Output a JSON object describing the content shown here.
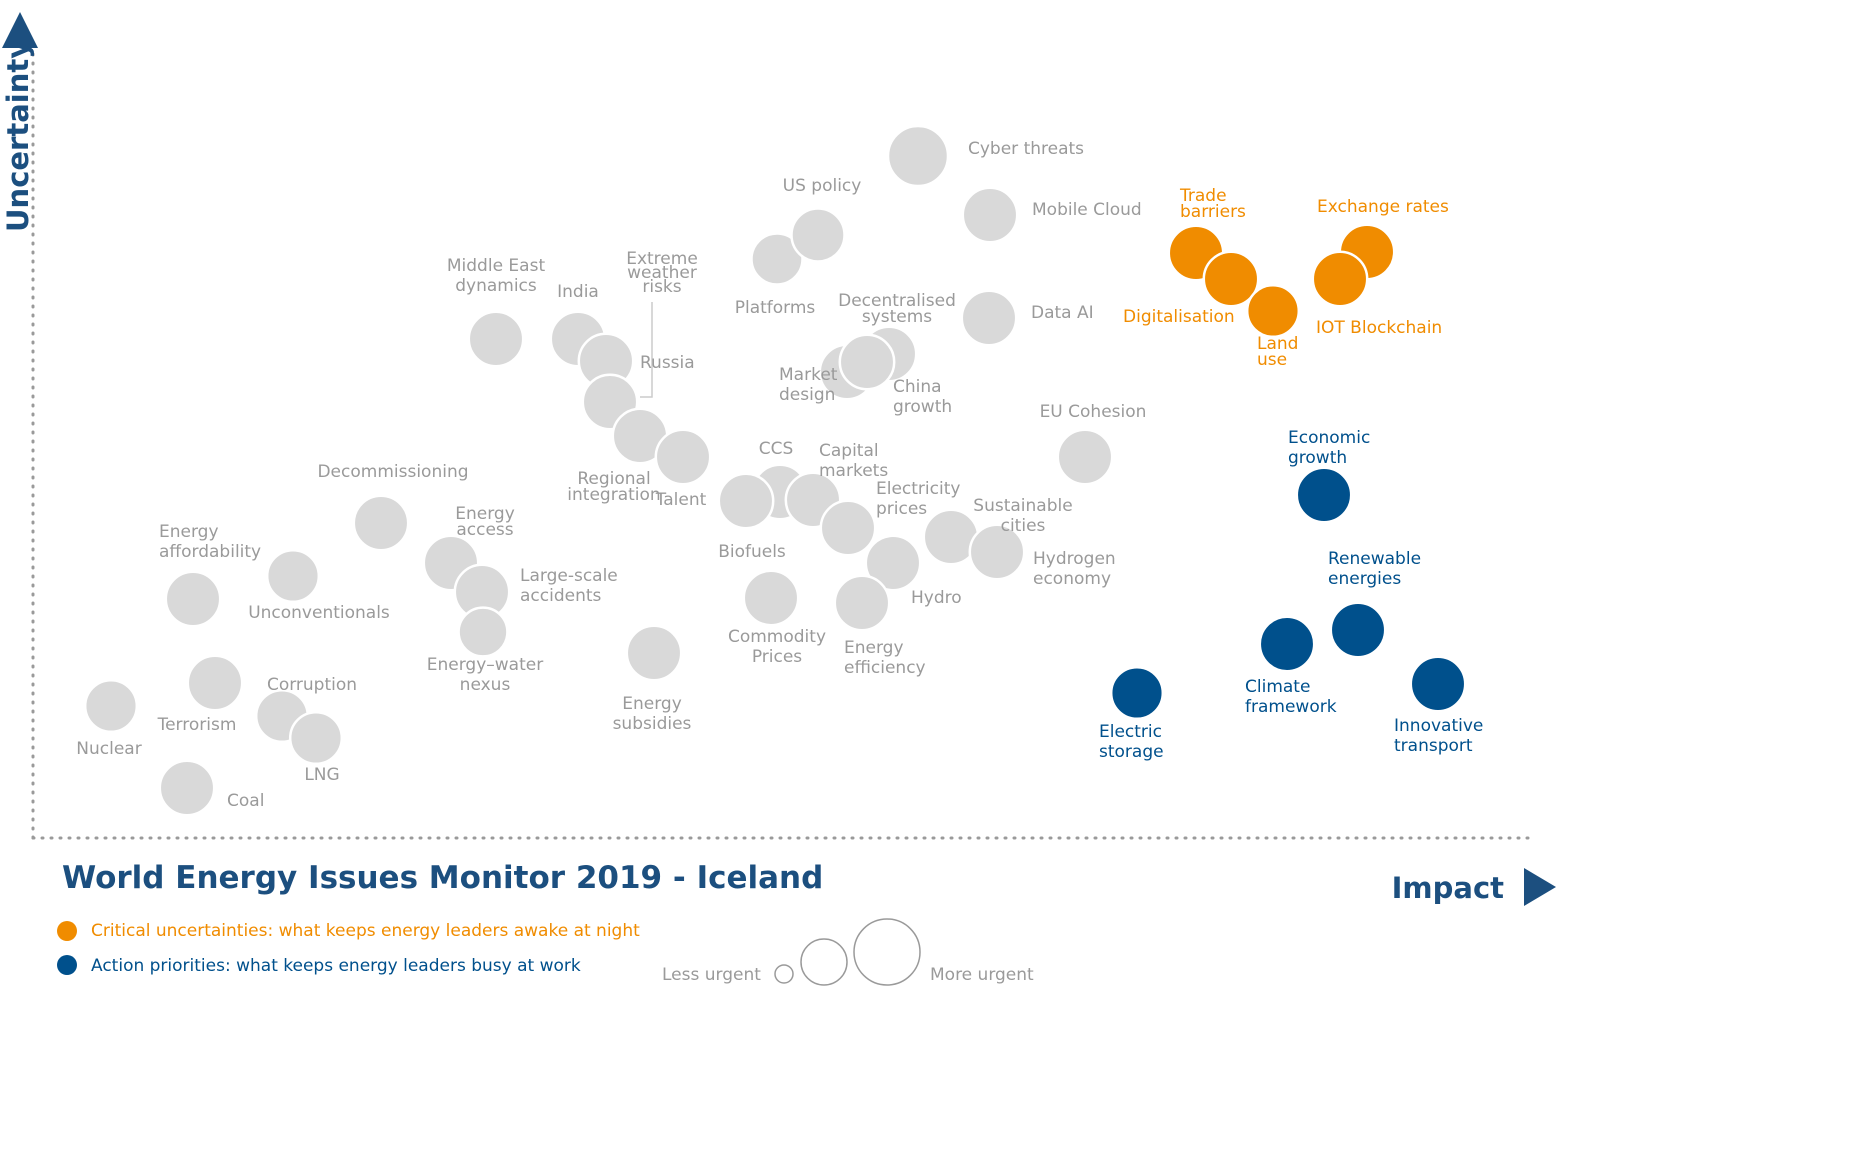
{
  "chart_data": {
    "type": "scatter",
    "title": "World Energy Issues Monitor 2019 - Iceland",
    "xlabel": "Impact",
    "ylabel": "Uncertainty",
    "grid": false,
    "legend_placement": "bottom-left",
    "colors": {
      "grey": "#d9d9d9",
      "orange": "#f08c00",
      "blue": "#00508c",
      "greyText": "#9a9a9a",
      "title": "#1c4f7f"
    },
    "legend": [
      {
        "label": "Critical uncertainties: what keeps energy leaders awake at night",
        "color": "#f08c00"
      },
      {
        "label": "Action priorities: what keeps energy leaders busy at work",
        "color": "#00508c"
      }
    ],
    "size_legend": {
      "less_label": "Less urgent",
      "more_label": "More urgent"
    },
    "issues": [
      {
        "id": "cyber",
        "label": [
          "Cyber threats"
        ],
        "group": "grey",
        "impact": 918,
        "uncertainty": 1004,
        "urgency": 1.0
      },
      {
        "id": "mobile",
        "label": [
          "Mobile Cloud"
        ],
        "group": "grey",
        "impact": 990,
        "uncertainty": 945,
        "urgency": 0.8
      },
      {
        "id": "dataai",
        "label": [
          "Data AI"
        ],
        "group": "grey",
        "impact": 989,
        "uncertainty": 842,
        "urgency": 0.8
      },
      {
        "id": "platforms",
        "label": [
          "Platforms"
        ],
        "group": "grey",
        "impact": 777,
        "uncertainty": 901,
        "urgency": 0.68
      },
      {
        "id": "uspolicy",
        "label": [
          "US policy"
        ],
        "group": "grey",
        "impact": 818,
        "uncertainty": 925,
        "urgency": 0.75
      },
      {
        "id": "mideast",
        "label": [
          "Middle East",
          "dynamics"
        ],
        "group": "grey",
        "impact": 496,
        "uncertainty": 821,
        "urgency": 0.8
      },
      {
        "id": "india",
        "label": [
          "India"
        ],
        "group": "grey",
        "impact": 578,
        "uncertainty": 821,
        "urgency": 0.8
      },
      {
        "id": "russia",
        "label": [
          "Russia"
        ],
        "group": "grey",
        "impact": 606,
        "uncertainty": 799,
        "urgency": 0.8
      },
      {
        "id": "extreme",
        "label": [
          "Extreme",
          "weather",
          "risks"
        ],
        "group": "grey",
        "impact": 610,
        "uncertainty": 758,
        "urgency": 0.8
      },
      {
        "id": "regional",
        "label": [
          "Regional",
          "integration"
        ],
        "group": "grey",
        "impact": 640,
        "uncertainty": 724,
        "urgency": 0.8
      },
      {
        "id": "talent",
        "label": [
          "Talent"
        ],
        "group": "grey",
        "impact": 683,
        "uncertainty": 703,
        "urgency": 0.8
      },
      {
        "id": "decentral",
        "label": [
          "Decentralised",
          "systems"
        ],
        "group": "grey",
        "impact": 889,
        "uncertainty": 806,
        "urgency": 0.8
      },
      {
        "id": "market",
        "label": [
          "Market",
          "design"
        ],
        "group": "grey",
        "impact": 847,
        "uncertainty": 788,
        "urgency": 0.8
      },
      {
        "id": "china",
        "label": [
          "China",
          "growth"
        ],
        "group": "grey",
        "impact": 867,
        "uncertainty": 798,
        "urgency": 0.8
      },
      {
        "id": "eucohesion",
        "label": [
          "EU Cohesion"
        ],
        "group": "grey",
        "impact": 1085,
        "uncertainty": 703,
        "urgency": 0.8
      },
      {
        "id": "ccs",
        "label": [
          "CCS"
        ],
        "group": "grey",
        "impact": 780,
        "uncertainty": 668,
        "urgency": 0.8
      },
      {
        "id": "capital",
        "label": [
          "Capital",
          "markets"
        ],
        "group": "grey",
        "impact": 813,
        "uncertainty": 660,
        "urgency": 0.8
      },
      {
        "id": "biofuels",
        "label": [
          "Biofuels"
        ],
        "group": "grey",
        "impact": 746,
        "uncertainty": 659,
        "urgency": 0.8
      },
      {
        "id": "elecprices",
        "label": [
          "Electricity",
          "prices"
        ],
        "group": "grey",
        "impact": 848,
        "uncertainty": 632,
        "urgency": 0.8
      },
      {
        "id": "sustcities",
        "label": [
          "Sustainable",
          "cities"
        ],
        "group": "grey",
        "impact": 951,
        "uncertainty": 623,
        "urgency": 0.8
      },
      {
        "id": "hydrogen",
        "label": [
          "Hydrogen",
          "economy"
        ],
        "group": "grey",
        "impact": 997,
        "uncertainty": 608,
        "urgency": 0.8
      },
      {
        "id": "hydro",
        "label": [
          "Hydro"
        ],
        "group": "grey",
        "impact": 893,
        "uncertainty": 597,
        "urgency": 0.8
      },
      {
        "id": "efficiency",
        "label": [
          "Energy",
          "efficiency"
        ],
        "group": "grey",
        "impact": 862,
        "uncertainty": 557,
        "urgency": 0.8
      },
      {
        "id": "commodity",
        "label": [
          "Commodity",
          "Prices"
        ],
        "group": "grey",
        "impact": 771,
        "uncertainty": 562,
        "urgency": 0.8
      },
      {
        "id": "subsidies",
        "label": [
          "Energy",
          "subsidies"
        ],
        "group": "grey",
        "impact": 654,
        "uncertainty": 507,
        "urgency": 0.8
      },
      {
        "id": "decommission",
        "label": [
          "Decommissioning"
        ],
        "group": "grey",
        "impact": 381,
        "uncertainty": 637,
        "urgency": 0.8
      },
      {
        "id": "access",
        "label": [
          "Energy",
          "access"
        ],
        "group": "grey",
        "impact": 451,
        "uncertainty": 597,
        "urgency": 0.8
      },
      {
        "id": "largescale",
        "label": [
          "Large-scale",
          "accidents"
        ],
        "group": "grey",
        "impact": 482,
        "uncertainty": 568,
        "urgency": 0.8
      },
      {
        "id": "waternexus",
        "label": [
          "Energy–water",
          "nexus"
        ],
        "group": "grey",
        "impact": 483,
        "uncertainty": 528,
        "urgency": 0.6
      },
      {
        "id": "unconventional",
        "label": [
          "Unconventionals"
        ],
        "group": "grey",
        "impact": 293,
        "uncertainty": 584,
        "urgency": 0.7
      },
      {
        "id": "affordability",
        "label": [
          "Energy",
          "affordability"
        ],
        "group": "grey",
        "impact": 193,
        "uncertainty": 561,
        "urgency": 0.8
      },
      {
        "id": "terrorism",
        "label": [
          "Terrorism"
        ],
        "group": "grey",
        "impact": 215,
        "uncertainty": 477,
        "urgency": 0.8
      },
      {
        "id": "corruption",
        "label": [
          "Corruption"
        ],
        "group": "grey",
        "impact": 282,
        "uncertainty": 444,
        "urgency": 0.7
      },
      {
        "id": "lng",
        "label": [
          "LNG"
        ],
        "group": "grey",
        "impact": 316,
        "uncertainty": 422,
        "urgency": 0.7
      },
      {
        "id": "nuclear",
        "label": [
          "Nuclear"
        ],
        "group": "grey",
        "impact": 111,
        "uncertainty": 454,
        "urgency": 0.7
      },
      {
        "id": "coal",
        "label": [
          "Coal"
        ],
        "group": "grey",
        "impact": 187,
        "uncertainty": 372,
        "urgency": 0.8
      },
      {
        "id": "trade",
        "label": [
          "Trade",
          "barriers"
        ],
        "group": "orange",
        "impact": 1196,
        "uncertainty": 907,
        "urgency": 0.8
      },
      {
        "id": "digital",
        "label": [
          "Digitalisation"
        ],
        "group": "orange",
        "impact": 1231,
        "uncertainty": 881,
        "urgency": 0.8
      },
      {
        "id": "landuse",
        "label": [
          "Land",
          "use"
        ],
        "group": "orange",
        "impact": 1273,
        "uncertainty": 849,
        "urgency": 0.7
      },
      {
        "id": "exchange",
        "label": [
          "Exchange rates"
        ],
        "group": "orange",
        "impact": 1367,
        "uncertainty": 908,
        "urgency": 0.8
      },
      {
        "id": "iot",
        "label": [
          "IOT Blockchain"
        ],
        "group": "orange",
        "impact": 1340,
        "uncertainty": 881,
        "urgency": 0.8
      },
      {
        "id": "econgrowth",
        "label": [
          "Economic",
          "growth"
        ],
        "group": "blue",
        "impact": 1324,
        "uncertainty": 665,
        "urgency": 0.8
      },
      {
        "id": "renewable",
        "label": [
          "Renewable",
          "energies"
        ],
        "group": "blue",
        "impact": 1358,
        "uncertainty": 530,
        "urgency": 0.8
      },
      {
        "id": "climate",
        "label": [
          "Climate",
          "framework"
        ],
        "group": "blue",
        "impact": 1287,
        "uncertainty": 516,
        "urgency": 0.8
      },
      {
        "id": "innovative",
        "label": [
          "Innovative",
          "transport"
        ],
        "group": "blue",
        "impact": 1438,
        "uncertainty": 476,
        "urgency": 0.8
      },
      {
        "id": "electric",
        "label": [
          "Electric",
          "storage"
        ],
        "group": "blue",
        "impact": 1137,
        "uncertainty": 467,
        "urgency": 0.7
      }
    ]
  }
}
